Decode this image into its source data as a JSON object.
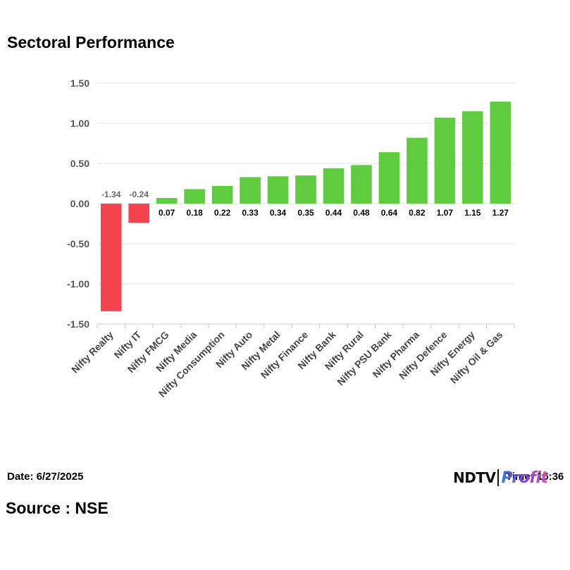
{
  "header": {
    "title": "Sectoral Performance"
  },
  "footer": {
    "date": "Date: 6/27/2025",
    "source": "Source : NSE",
    "time": "Time: 15:36",
    "logo_main": "NDTV",
    "logo_sub": "Profit"
  },
  "colors": {
    "positive": "#5fcb3f",
    "negative": "#f5424f",
    "grid": "#e3e3e3",
    "axis": "#cccccc"
  },
  "chart_data": {
    "type": "bar",
    "title": "Sectoral Performance",
    "xlabel": "",
    "ylabel": "",
    "ylim": [
      -1.5,
      1.5
    ],
    "yticks": [
      1.5,
      1.0,
      0.5,
      0.0,
      -0.5,
      -1.0,
      -1.5
    ],
    "ytick_labels": [
      "1.50",
      "1.00",
      "0.50",
      "0.00",
      "-0.50",
      "-1.00",
      "-1.50"
    ],
    "categories": [
      "Nifty Realty",
      "Nifty IT",
      "Nifty FMCG",
      "Nifty Media",
      "Nifty Consumption",
      "Nifty Auto",
      "Nifty Metal",
      "Nifty Finance",
      "Nifty Bank",
      "Nifty Rural",
      "Nifty PSU Bank",
      "Nifty Pharma",
      "Nifty Defence",
      "Nifty Energy",
      "Nifty Oil & Gas"
    ],
    "values": [
      -1.34,
      -0.24,
      0.07,
      0.18,
      0.22,
      0.33,
      0.34,
      0.35,
      0.44,
      0.48,
      0.64,
      0.82,
      1.07,
      1.15,
      1.27
    ],
    "data_labels": [
      "-1.34",
      "-0.24",
      "0.07",
      "0.18",
      "0.22",
      "0.33",
      "0.34",
      "0.35",
      "0.44",
      "0.48",
      "0.64",
      "0.82",
      "1.07",
      "1.15",
      "1.27"
    ],
    "grid": true,
    "legend": "none"
  }
}
